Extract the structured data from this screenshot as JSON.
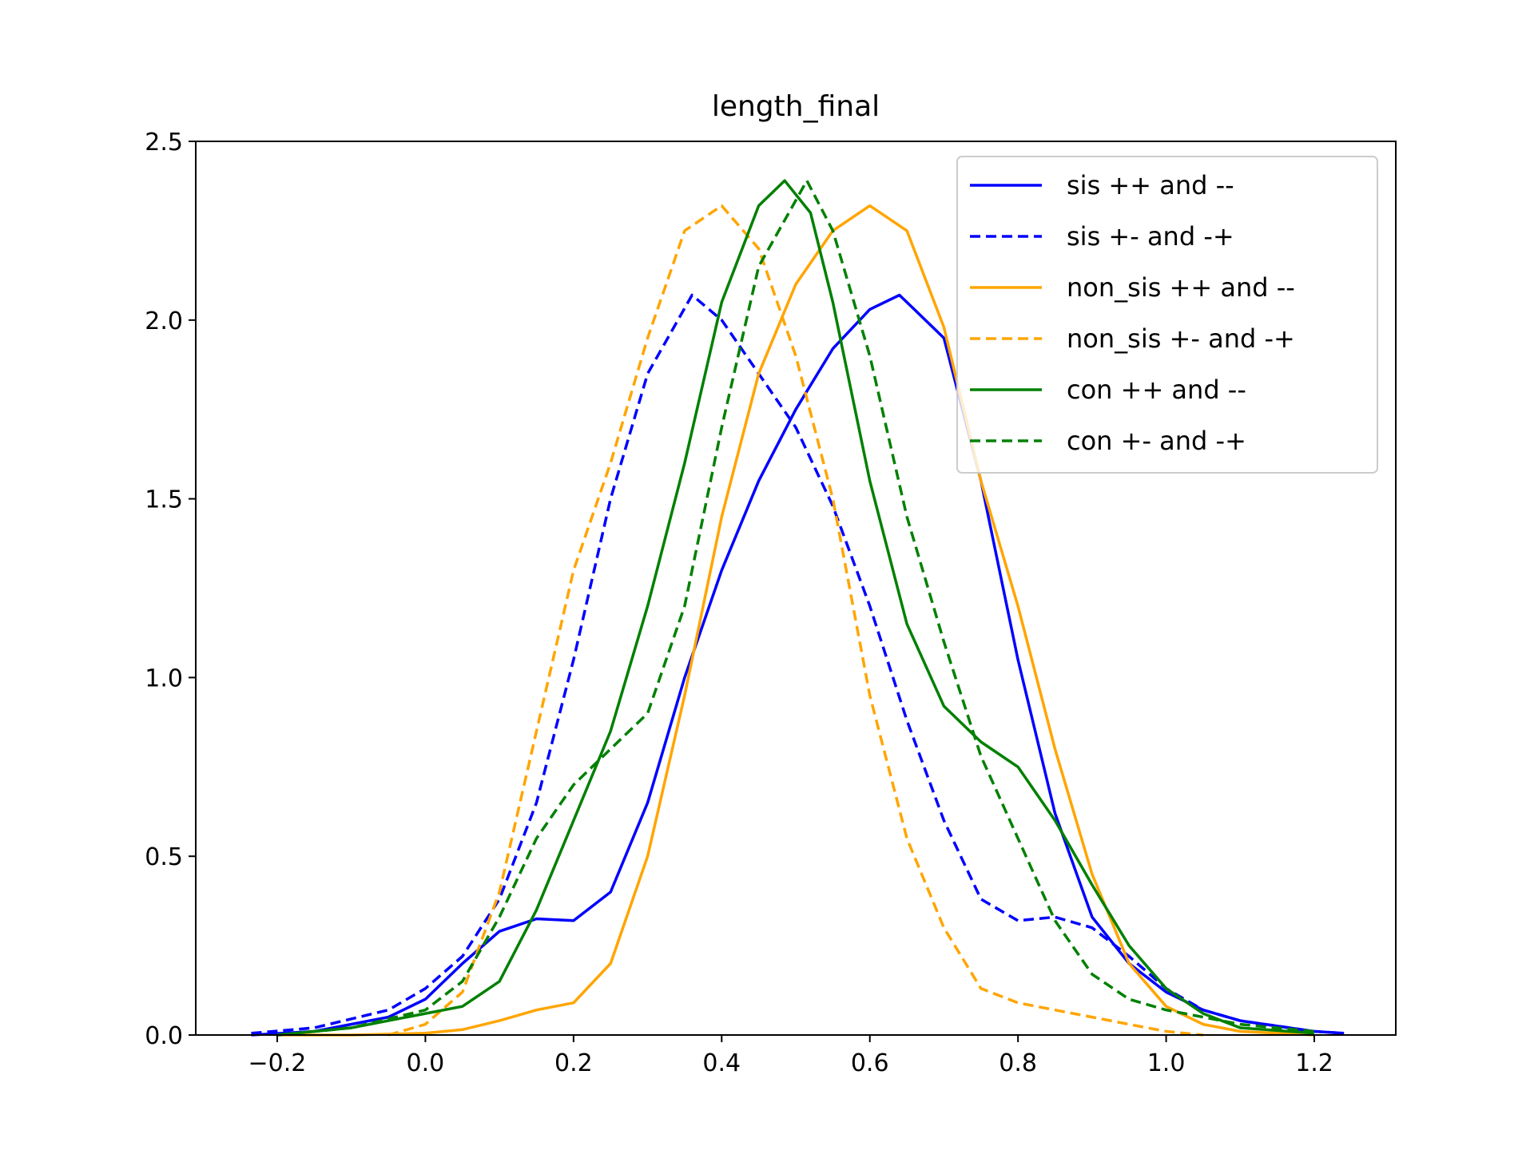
{
  "chart_data": {
    "type": "line",
    "title": "length_final",
    "xlabel": "",
    "ylabel": "",
    "xlim": [
      -0.31,
      1.31
    ],
    "ylim": [
      0,
      2.5
    ],
    "xticks": [
      -0.2,
      0.0,
      0.2,
      0.4,
      0.6,
      0.8,
      1.0,
      1.2
    ],
    "xtick_labels": [
      "−0.2",
      "0.0",
      "0.2",
      "0.4",
      "0.6",
      "0.8",
      "1.0",
      "1.2"
    ],
    "yticks": [
      0.0,
      0.5,
      1.0,
      1.5,
      2.0,
      2.5
    ],
    "ytick_labels": [
      "0.0",
      "0.5",
      "1.0",
      "1.5",
      "2.0",
      "2.5"
    ],
    "grid": false,
    "legend_position": "top-right",
    "series": [
      {
        "name": "sis ++ and --",
        "color": "#0000ff",
        "style": "solid",
        "points": [
          [
            -0.235,
            0.0
          ],
          [
            -0.15,
            0.01
          ],
          [
            -0.05,
            0.05
          ],
          [
            0.0,
            0.1
          ],
          [
            0.05,
            0.2
          ],
          [
            0.1,
            0.29
          ],
          [
            0.15,
            0.325
          ],
          [
            0.2,
            0.32
          ],
          [
            0.25,
            0.4
          ],
          [
            0.3,
            0.65
          ],
          [
            0.35,
            1.0
          ],
          [
            0.4,
            1.3
          ],
          [
            0.45,
            1.55
          ],
          [
            0.5,
            1.75
          ],
          [
            0.55,
            1.92
          ],
          [
            0.6,
            2.03
          ],
          [
            0.64,
            2.07
          ],
          [
            0.7,
            1.95
          ],
          [
            0.75,
            1.55
          ],
          [
            0.8,
            1.05
          ],
          [
            0.85,
            0.62
          ],
          [
            0.9,
            0.33
          ],
          [
            0.95,
            0.2
          ],
          [
            1.0,
            0.12
          ],
          [
            1.05,
            0.07
          ],
          [
            1.1,
            0.04
          ],
          [
            1.2,
            0.01
          ],
          [
            1.24,
            0.005
          ]
        ]
      },
      {
        "name": "sis +- and -+",
        "color": "#0000ff",
        "style": "dashed",
        "points": [
          [
            -0.235,
            0.005
          ],
          [
            -0.15,
            0.02
          ],
          [
            -0.05,
            0.07
          ],
          [
            0.0,
            0.13
          ],
          [
            0.05,
            0.22
          ],
          [
            0.1,
            0.38
          ],
          [
            0.15,
            0.65
          ],
          [
            0.2,
            1.05
          ],
          [
            0.25,
            1.5
          ],
          [
            0.3,
            1.85
          ],
          [
            0.36,
            2.07
          ],
          [
            0.4,
            2.0
          ],
          [
            0.45,
            1.85
          ],
          [
            0.5,
            1.7
          ],
          [
            0.55,
            1.48
          ],
          [
            0.6,
            1.2
          ],
          [
            0.65,
            0.88
          ],
          [
            0.7,
            0.6
          ],
          [
            0.75,
            0.38
          ],
          [
            0.8,
            0.32
          ],
          [
            0.85,
            0.33
          ],
          [
            0.9,
            0.3
          ],
          [
            0.95,
            0.22
          ],
          [
            1.0,
            0.13
          ],
          [
            1.05,
            0.07
          ],
          [
            1.1,
            0.04
          ],
          [
            1.2,
            0.01
          ],
          [
            1.24,
            0.005
          ]
        ]
      },
      {
        "name": "non_sis ++ and --",
        "color": "#ffa500",
        "style": "solid",
        "points": [
          [
            -0.2,
            0.0
          ],
          [
            -0.1,
            0.0
          ],
          [
            0.0,
            0.005
          ],
          [
            0.05,
            0.015
          ],
          [
            0.1,
            0.04
          ],
          [
            0.15,
            0.07
          ],
          [
            0.2,
            0.09
          ],
          [
            0.25,
            0.2
          ],
          [
            0.3,
            0.5
          ],
          [
            0.35,
            0.95
          ],
          [
            0.4,
            1.45
          ],
          [
            0.45,
            1.85
          ],
          [
            0.5,
            2.1
          ],
          [
            0.55,
            2.25
          ],
          [
            0.6,
            2.32
          ],
          [
            0.65,
            2.25
          ],
          [
            0.7,
            1.98
          ],
          [
            0.75,
            1.55
          ],
          [
            0.8,
            1.2
          ],
          [
            0.85,
            0.8
          ],
          [
            0.9,
            0.45
          ],
          [
            0.95,
            0.2
          ],
          [
            1.0,
            0.08
          ],
          [
            1.05,
            0.03
          ],
          [
            1.1,
            0.01
          ],
          [
            1.2,
            0.0
          ]
        ]
      },
      {
        "name": "non_sis +- and -+",
        "color": "#ffa500",
        "style": "dashed",
        "points": [
          [
            -0.05,
            0.0
          ],
          [
            0.0,
            0.03
          ],
          [
            0.05,
            0.12
          ],
          [
            0.1,
            0.4
          ],
          [
            0.15,
            0.85
          ],
          [
            0.2,
            1.3
          ],
          [
            0.25,
            1.6
          ],
          [
            0.3,
            1.95
          ],
          [
            0.35,
            2.25
          ],
          [
            0.4,
            2.32
          ],
          [
            0.45,
            2.2
          ],
          [
            0.5,
            1.9
          ],
          [
            0.55,
            1.5
          ],
          [
            0.6,
            0.95
          ],
          [
            0.65,
            0.55
          ],
          [
            0.7,
            0.3
          ],
          [
            0.75,
            0.13
          ],
          [
            0.8,
            0.09
          ],
          [
            0.85,
            0.07
          ],
          [
            0.9,
            0.05
          ],
          [
            0.95,
            0.03
          ],
          [
            1.0,
            0.01
          ],
          [
            1.05,
            0.0
          ]
        ]
      },
      {
        "name": "con ++ and --",
        "color": "#008000",
        "style": "solid",
        "points": [
          [
            -0.2,
            0.0
          ],
          [
            -0.1,
            0.02
          ],
          [
            0.0,
            0.06
          ],
          [
            0.05,
            0.08
          ],
          [
            0.1,
            0.15
          ],
          [
            0.15,
            0.35
          ],
          [
            0.2,
            0.6
          ],
          [
            0.25,
            0.85
          ],
          [
            0.3,
            1.2
          ],
          [
            0.35,
            1.6
          ],
          [
            0.4,
            2.05
          ],
          [
            0.45,
            2.32
          ],
          [
            0.485,
            2.39
          ],
          [
            0.52,
            2.3
          ],
          [
            0.55,
            2.05
          ],
          [
            0.6,
            1.55
          ],
          [
            0.65,
            1.15
          ],
          [
            0.7,
            0.92
          ],
          [
            0.75,
            0.82
          ],
          [
            0.8,
            0.75
          ],
          [
            0.85,
            0.6
          ],
          [
            0.9,
            0.42
          ],
          [
            0.95,
            0.25
          ],
          [
            1.0,
            0.13
          ],
          [
            1.05,
            0.06
          ],
          [
            1.1,
            0.02
          ],
          [
            1.2,
            0.005
          ]
        ]
      },
      {
        "name": "con +- and -+",
        "color": "#008000",
        "style": "dashed",
        "points": [
          [
            -0.2,
            0.0
          ],
          [
            -0.1,
            0.02
          ],
          [
            0.0,
            0.07
          ],
          [
            0.05,
            0.15
          ],
          [
            0.1,
            0.33
          ],
          [
            0.15,
            0.55
          ],
          [
            0.2,
            0.7
          ],
          [
            0.25,
            0.8
          ],
          [
            0.3,
            0.9
          ],
          [
            0.35,
            1.2
          ],
          [
            0.4,
            1.7
          ],
          [
            0.45,
            2.15
          ],
          [
            0.515,
            2.39
          ],
          [
            0.55,
            2.25
          ],
          [
            0.6,
            1.9
          ],
          [
            0.65,
            1.45
          ],
          [
            0.7,
            1.1
          ],
          [
            0.75,
            0.78
          ],
          [
            0.8,
            0.55
          ],
          [
            0.85,
            0.32
          ],
          [
            0.9,
            0.17
          ],
          [
            0.95,
            0.1
          ],
          [
            1.0,
            0.07
          ],
          [
            1.05,
            0.05
          ],
          [
            1.1,
            0.03
          ],
          [
            1.2,
            0.01
          ]
        ]
      }
    ]
  }
}
